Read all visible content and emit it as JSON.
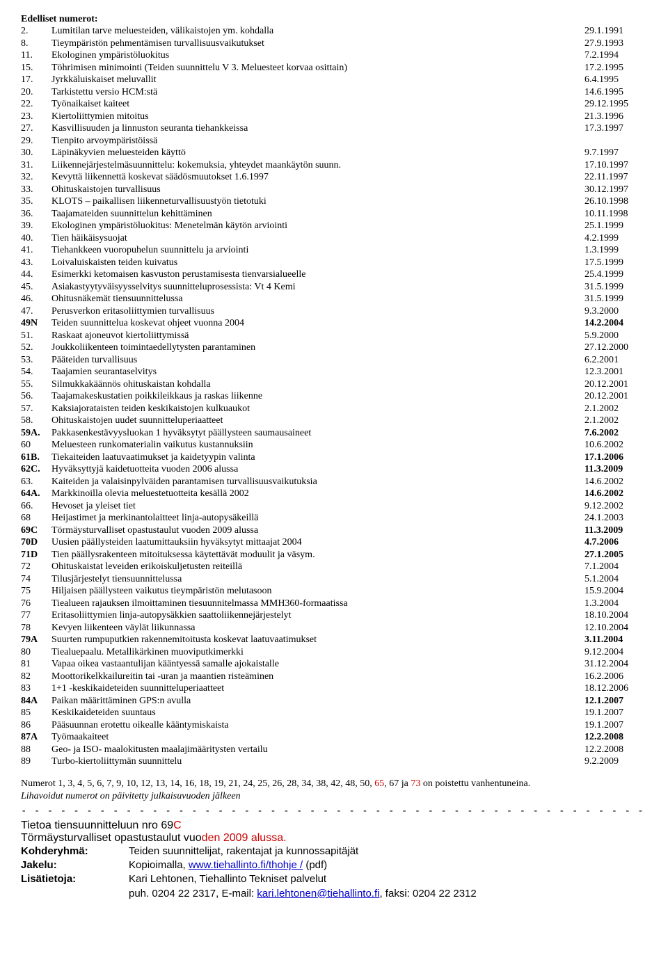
{
  "heading": "Edelliset numerot:",
  "entries": [
    {
      "num": "2.",
      "title": "Lumitilan tarve meluesteiden, välikaistojen ym. kohdalla",
      "date": "29.1.1991"
    },
    {
      "num": "8.",
      "title": "Tieympäristön pehmentämisen turvallisuusvaikutukset",
      "date": "27.9.1993"
    },
    {
      "num": "11.",
      "title": "Ekologinen ympäristöluokitus",
      "date": "7.2.1994"
    },
    {
      "num": "15.",
      "title": "Töhrimisen minimointi (Teiden suunnittelu V 3. Meluesteet korvaa osittain)",
      "date": "17.2.1995"
    },
    {
      "num": "17.",
      "title": "Jyrkkäluiskaiset meluvallit",
      "date": "6.4.1995"
    },
    {
      "num": "20.",
      "title": "Tarkistettu versio HCM:stä",
      "date": "14.6.1995"
    },
    {
      "num": "22.",
      "title": "Työnaikaiset kaiteet",
      "date": "29.12.1995"
    },
    {
      "num": "23.",
      "title": "Kiertoliittymien mitoitus",
      "date": "21.3.1996"
    },
    {
      "num": "27.",
      "title": "Kasvillisuuden ja linnuston seuranta tiehankkeissa",
      "date": "17.3.1997"
    },
    {
      "num": "29.",
      "title": "Tienpito arvoympäristöissä",
      "date": ""
    },
    {
      "num": "30.",
      "title": "Läpinäkyvien meluesteiden käyttö",
      "date": "9.7.1997"
    },
    {
      "num": "31.",
      "title": "Liikennejärjestelmäsuunnittelu: kokemuksia, yhteydet maankäytön suunn.",
      "date": "17.10.1997"
    },
    {
      "num": "32.",
      "title": "Kevyttä liikennettä koskevat säädösmuutokset 1.6.1997",
      "date": "22.11.1997"
    },
    {
      "num": "33.",
      "title": "Ohituskaistojen turvallisuus",
      "date": "30.12.1997"
    },
    {
      "num": "35.",
      "title": "KLOTS – paikallisen liikenneturvallisuustyön tietotuki",
      "date": "26.10.1998"
    },
    {
      "num": "36.",
      "title": "Taajamateiden suunnittelun kehittäminen",
      "date": "10.11.1998"
    },
    {
      "num": "39.",
      "title": "Ekologinen ympäristöluokitus: Menetelmän käytön arviointi",
      "date": "25.1.1999"
    },
    {
      "num": "40.",
      "title": "Tien häikäisysuojat",
      "date": "4.2.1999"
    },
    {
      "num": "41.",
      "title": "Tiehankkeen vuoropuhelun suunnittelu ja arviointi",
      "date": "1.3.1999"
    },
    {
      "num": "43.",
      "title": "Loivaluiskaisten teiden kuivatus",
      "date": "17.5.1999"
    },
    {
      "num": "44.",
      "title": "Esimerkki ketomaisen kasvuston perustamisesta tienvarsialueelle",
      "date": "25.4.1999"
    },
    {
      "num": "45.",
      "title": " Asiakastyytyväisyysselvitys suunnitteluprosessista: Vt 4 Kemi",
      "date": " 31.5.1999"
    },
    {
      "num": "46.",
      "title": " Ohitusnäkemät tiensuunnittelussa",
      "date": " 31.5.1999"
    },
    {
      "num": "47.",
      "title": "Perusverkon eritasoliittymien turvallisuus",
      "date": "9.3.2000"
    },
    {
      "num": "49N",
      "title": "Teiden suunnittelua koskevat ohjeet vuonna 2004",
      "date": "14.2.2004"
    },
    {
      "num": "51.",
      "title": "Raskaat ajoneuvot kiertoliittymissä",
      "date": "5.9.2000"
    },
    {
      "num": "52.",
      "title": "Joukkoliikenteen toimintaedellytysten parantaminen",
      "date": "27.12.2000"
    },
    {
      "num": "53.",
      "title": "Pääteiden turvallisuus",
      "date": "6.2.2001"
    },
    {
      "num": "54.",
      "title": "Taajamien seurantaselvitys",
      "date": "12.3.2001"
    },
    {
      "num": "55.",
      "title": "Silmukkakäännös ohituskaistan kohdalla",
      "date": "20.12.2001"
    },
    {
      "num": "56.",
      "title": "Taajamakeskustatien poikkileikkaus ja raskas liikenne",
      "date": "20.12.2001"
    },
    {
      "num": "57.",
      "title": "Kaksiajorataisten teiden keskikaistojen kulkuaukot",
      "date": "2.1.2002"
    },
    {
      "num": "58.",
      "title": "Ohituskaistojen uudet suunnitteluperiaatteet",
      "date": "2.1.2002"
    },
    {
      "num": "59A.",
      "title": "Pakkasenkestävyysluokan 1 hyväksytyt päällysteen saumausaineet",
      "date": "7.6.2002"
    },
    {
      "num": "60",
      "title": "Meluesteen runkomaterialin vaikutus kustannuksiin",
      "date": "10.6.2002"
    },
    {
      "num": "61B.",
      "title": "Tiekaiteiden laatuvaatimukset ja kaidetyypin valinta",
      "date": "17.1.2006"
    },
    {
      "num": "62C.",
      "title": "Hyväksyttyjä kaidetuotteita vuoden 2006 alussa",
      "date": "11.3.2009"
    },
    {
      "num": "63.",
      "title": "Kaiteiden ja valaisinpylväiden parantamisen turvallisuusvaikutuksia",
      "date": "14.6.2002"
    },
    {
      "num": "64A.",
      "title": "Markkinoilla olevia meluestetuotteita kesällä 2002",
      "date": "14.6.2002"
    },
    {
      "num": "66.",
      "title": "Hevoset ja yleiset tiet",
      "date": "9.12.2002"
    },
    {
      "num": "68",
      "title": "Heijastimet ja merkinantolaitteet linja-autopysäkeillä",
      "date": "24.1.2003"
    },
    {
      "num": "69C",
      "title": "Törmäysturvalliset opastustaulut vuoden 2009 alussa",
      "date": "11.3.2009"
    },
    {
      "num": "70D",
      "title": "Uusien päällysteiden laatumittauksiin hyväksytyt mittaajat 2004",
      "date": "4.7.2006"
    },
    {
      "num": "71D",
      "title": "Tien päällysrakenteen mitoituksessa käytettävät moduulit ja väsym.",
      "date": "27.1.2005"
    },
    {
      "num": "72",
      "title": "Ohituskaistat leveiden erikoiskuljetusten reiteillä",
      "date": "7.1.2004"
    },
    {
      "num": "74",
      "title": "Tilusjärjestelyt tiensuunnittelussa",
      "date": "5.1.2004"
    },
    {
      "num": "75",
      "title": "Hiljaisen päällysteen vaikutus tieympäristön melutasoon",
      "date": "15.9.2004"
    },
    {
      "num": "76",
      "title": "Tiealueen rajauksen ilmoittaminen tiesuunnitelmassa MMH360-formaatissa",
      "date": "1.3.2004"
    },
    {
      "num": "77",
      "title": "Eritasoliittymien linja-autopysäkkien saattoliikennejärjestelyt",
      "date": "18.10.2004"
    },
    {
      "num": "78",
      "title": "Kevyen liikenteen väylät liikunnassa",
      "date": "12.10.2004"
    },
    {
      "num": "79A",
      "title": "Suurten rumpuputkien rakennemitoitusta koskevat laatuvaatimukset",
      "date": "3.11.2004"
    },
    {
      "num": "80",
      "title": "Tiealuepaalu. Metallikärkinen muoviputkimerkki",
      "date": "9.12.2004"
    },
    {
      "num": "81",
      "title": "Vapaa oikea vastaantulijan kääntyessä samalle ajokaistalle",
      "date": "31.12.2004"
    },
    {
      "num": "82",
      "title": "Moottorikelkkailureitin tai -uran ja maantien risteäminen",
      "date": "16.2.2006"
    },
    {
      "num": "83",
      "title": "1+1 -keskikaideteiden suunnitteluperiaatteet",
      "date": "18.12.2006"
    },
    {
      "num": "84A",
      "title": "Paikan määrittäminen GPS:n avulla",
      "date": "12.1.2007"
    },
    {
      "num": "85",
      "title": "Keskikaideteiden suuntaus",
      "date": "19.1.2007"
    },
    {
      "num": "86",
      "title": "Pääsuunnan erotettu oikealle kääntymiskaista",
      "date": "19.1.2007"
    },
    {
      "num": "87A",
      "title": "Työmaakaiteet",
      "date": "12.2.2008"
    },
    {
      "num": "88",
      "title": "Geo- ja ISO- maalokitusten maalajimääritysten vertailu",
      "date": "12.2.2008"
    },
    {
      "num": "89",
      "title": "Turbo-kiertoliittymän suunnittelu",
      "date": "9.2.2009"
    }
  ],
  "note_part1": "Numerot 1, 3, 4, 5, 6, 7, 9, 10, 12, 13, 14, 16, 18, 19, 21, 24, 25, 26, 28, 34, 38, 42, 48, 50, ",
  "note_red1": "65",
  "note_mid": ", 67 ja ",
  "note_red2": "73",
  "note_part2": " on poistettu vanhentuneina.",
  "note_line2": "Lihavoidut numerot on päivitetty julkaisuvuoden jälkeen",
  "dashes": "- - - - - - - - - - - - - - - - - - - - - - - - - - - - - - - - - - - - - - - - - - - - - - - - - - - - - - - - - - - - - - - - - - - - - - - - - - - - - - - - - - - - - - - - - - - - - - -",
  "section_num": "Tietoa tiensuunnitteluun nro 69",
  "section_letter": "C",
  "section_sub_a": "Törmäysturvalliset opastustaulut vuo",
  "section_sub_b": "den 2009 alussa.",
  "info": {
    "kohde_label": "Kohderyhmä:",
    "kohde_val": "Teiden suunnittelijat, rakentajat ja kunnossapitäjät",
    "jakelu_label": "Jakelu:",
    "jakelu_val_a": "Kopioimalla, ",
    "jakelu_link": "www.tiehallinto.fi/thohje /",
    "jakelu_val_b": " (pdf)",
    "lisa_label": "Lisätietoja:",
    "lisa_val1": "Kari Lehtonen, Tiehallinto Tekniset palvelut",
    "lisa_val2a": "puh. 0204 22 2317, E-mail: ",
    "lisa_email": "kari.lehtonen@tiehallinto.fi",
    "lisa_val2b": ", faksi: 0204 22 2312"
  },
  "bold_nums": [
    "49N",
    "59A.",
    "61B.",
    "62C.",
    "64A.",
    "69C",
    "70D",
    "71D",
    "79A",
    "84A",
    "87A"
  ],
  "bold_dates": [
    "14.2.2004",
    "7.6.2002",
    "17.1.2006",
    "11.3.2009",
    "14.6.2002",
    "4.7.2006",
    "27.1.2005",
    "3.11.2004",
    "12.1.2007",
    "12.2.2008"
  ]
}
